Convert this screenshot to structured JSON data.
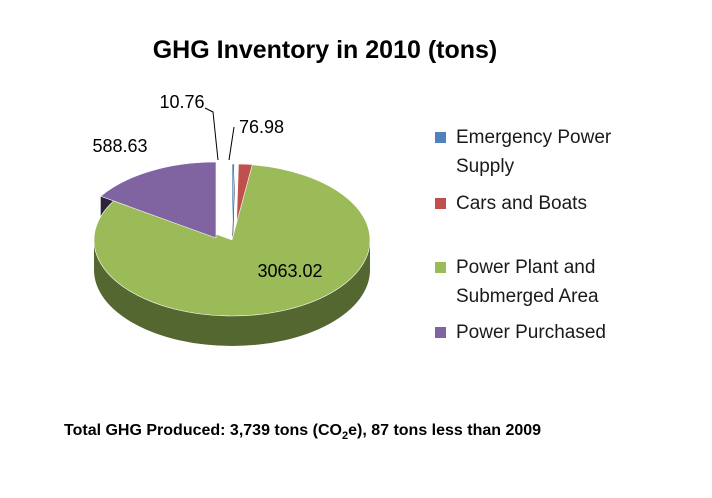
{
  "chart_data": {
    "type": "pie",
    "title": "GHG Inventory in 2010 (tons)",
    "series": [
      {
        "label": "Emergency Power Supply",
        "value": 10.76,
        "value_label": "10.76",
        "color": "#4f81bd"
      },
      {
        "label": "Cars and Boats",
        "value": 76.98,
        "value_label": "76.98",
        "color": "#c0504d"
      },
      {
        "label": "Power Plant and Submerged Area",
        "value": 3063.02,
        "value_label": "3063.02",
        "color": "#9bbb59"
      },
      {
        "label": "Power Purchased",
        "value": 588.63,
        "value_label": "588.63",
        "color": "#8064a2"
      }
    ],
    "legend_position": "right",
    "style": "3d-exploded-pie"
  },
  "footnote": {
    "prefix": "Total GHG Produced: 3,739 tons (CO",
    "subscript": "2",
    "suffix": "e), 87 tons less than 2009"
  }
}
